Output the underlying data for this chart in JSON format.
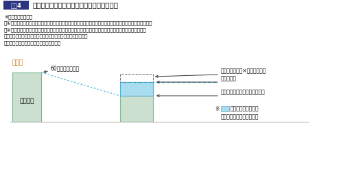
{
  "title_box_text": "図表4",
  "title_main": "高年齢雇用継続給付の算定に係る支給限度額",
  "note_lines": [
    "※支給限度額とは、",
    "　①支給対象月に支払われた賃金の額が支給限度額以上であるときは、高年齢雇用継続給付は支給されない。",
    "　②支給対象月に支払われた賃金の額と高年齢雇用継続給付との合計額とが支給限度額を超えるときは、",
    "　　　（支給限度額）－（支給対象月に支払われた賃金の額）",
    "　が高年齢雇用継続給付の支給額となる。"
  ],
  "example_label": "（例）",
  "bar1_color": "#cce0d0",
  "bar1_edge_color": "#7ab88a",
  "bar2_color": "#cce0d0",
  "bar2_edge_color": "#7ab88a",
  "bar2_top_color": "#aaddf0",
  "bar2_top_edge_color": "#55aacc",
  "title_box_color": "#2a3580",
  "label_60": "60歳到達時賃金額",
  "label_wage_down": "賃金低下",
  "label_line1": "賃金額＋賃金額×本来の給付率",
  "label_line2": "支給限度額",
  "label_line3": "支給対象月に支払われた賃金額",
  "note_box_color": "#aaddf0",
  "note_box_edge_color": "#55aacc",
  "note_suffix": "の部分が高年齢雇用",
  "note_suffix2": "継続給付の支給額となる。",
  "dotted_color": "#44bbdd",
  "arrow_color": "#333333",
  "baseline_color": "#aaaaaa",
  "background_color": "#ffffff"
}
